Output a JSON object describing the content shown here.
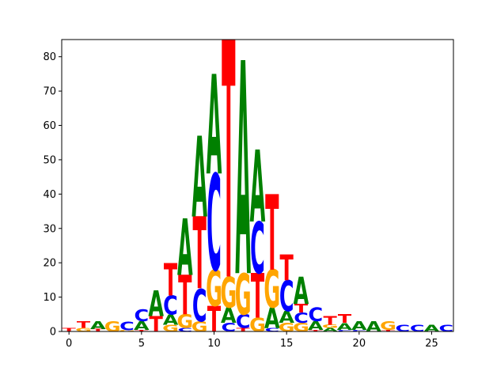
{
  "chart_data": {
    "type": "sequence-logo",
    "title": "",
    "xlabel": "",
    "ylabel": "",
    "xlim": [
      -0.5,
      26.5
    ],
    "ylim": [
      0,
      85
    ],
    "x_ticks": [
      0,
      5,
      10,
      15,
      20,
      25
    ],
    "y_ticks": [
      0,
      10,
      20,
      30,
      40,
      50,
      60,
      70,
      80
    ],
    "colors": {
      "A": "#008000",
      "C": "#0000ff",
      "G": "#ffa500",
      "T": "#ff0000"
    },
    "positions": [
      {
        "x": 0,
        "stack": [
          [
            "T",
            1
          ]
        ]
      },
      {
        "x": 1,
        "stack": [
          [
            "G",
            1
          ],
          [
            "T",
            2
          ]
        ]
      },
      {
        "x": 2,
        "stack": [
          [
            "T",
            0.7
          ],
          [
            "A",
            2.3
          ]
        ]
      },
      {
        "x": 3,
        "stack": [
          [
            "G",
            3
          ]
        ]
      },
      {
        "x": 4,
        "stack": [
          [
            "G",
            0.4
          ],
          [
            "C",
            2.6
          ]
        ]
      },
      {
        "x": 5,
        "stack": [
          [
            "T",
            0.5
          ],
          [
            "A",
            2.5
          ],
          [
            "C",
            3.5
          ]
        ]
      },
      {
        "x": 6,
        "stack": [
          [
            "T",
            4.5
          ],
          [
            "A",
            7.5
          ]
        ]
      },
      {
        "x": 7,
        "stack": [
          [
            "G",
            2
          ],
          [
            "A",
            3
          ],
          [
            "C",
            5.5
          ],
          [
            "T",
            9.5
          ]
        ]
      },
      {
        "x": 8,
        "stack": [
          [
            "C",
            1
          ],
          [
            "G",
            4
          ],
          [
            "T",
            11.5
          ],
          [
            "A",
            16.5
          ]
        ]
      },
      {
        "x": 9,
        "stack": [
          [
            "G",
            3
          ],
          [
            "C",
            9.5
          ],
          [
            "T",
            21
          ],
          [
            "A",
            23.5
          ]
        ]
      },
      {
        "x": 10,
        "stack": [
          [
            "T",
            7.5
          ],
          [
            "G",
            10.5
          ],
          [
            "C",
            28
          ],
          [
            "A",
            29
          ]
        ]
      },
      {
        "x": 11,
        "stack": [
          [
            "C",
            2.5
          ],
          [
            "A",
            4.5
          ],
          [
            "G",
            9
          ],
          [
            "T",
            69
          ]
        ]
      },
      {
        "x": 12,
        "stack": [
          [
            "T",
            1
          ],
          [
            "C",
            4
          ],
          [
            "G",
            12
          ],
          [
            "A",
            62
          ]
        ]
      },
      {
        "x": 13,
        "stack": [
          [
            "G",
            4
          ],
          [
            "T",
            13
          ],
          [
            "C",
            15
          ],
          [
            "A",
            21
          ]
        ]
      },
      {
        "x": 14,
        "stack": [
          [
            "C",
            1
          ],
          [
            "A",
            6
          ],
          [
            "G",
            11
          ],
          [
            "T",
            22
          ]
        ]
      },
      {
        "x": 15,
        "stack": [
          [
            "G",
            2.5
          ],
          [
            "A",
            3.5
          ],
          [
            "C",
            9
          ],
          [
            "T",
            7.5
          ]
        ]
      },
      {
        "x": 16,
        "stack": [
          [
            "G",
            2.5
          ],
          [
            "C",
            3
          ],
          [
            "T",
            2.5
          ],
          [
            "A",
            8
          ]
        ]
      },
      {
        "x": 17,
        "stack": [
          [
            "T",
            0.5
          ],
          [
            "A",
            2.5
          ],
          [
            "C",
            4
          ]
        ]
      },
      {
        "x": 18,
        "stack": [
          [
            "A",
            1
          ],
          [
            "G",
            1
          ],
          [
            "T",
            2.5
          ]
        ]
      },
      {
        "x": 19,
        "stack": [
          [
            "C",
            0.5
          ],
          [
            "A",
            2
          ],
          [
            "T",
            2.5
          ]
        ]
      },
      {
        "x": 20,
        "stack": [
          [
            "C",
            0.5
          ],
          [
            "A",
            2.5
          ]
        ]
      },
      {
        "x": 21,
        "stack": [
          [
            "A",
            3
          ]
        ]
      },
      {
        "x": 22,
        "stack": [
          [
            "T",
            0.5
          ],
          [
            "G",
            2.5
          ]
        ]
      },
      {
        "x": 23,
        "stack": [
          [
            "C",
            2
          ]
        ]
      },
      {
        "x": 24,
        "stack": [
          [
            "C",
            2
          ]
        ]
      },
      {
        "x": 25,
        "stack": [
          [
            "A",
            2
          ]
        ]
      },
      {
        "x": 26,
        "stack": [
          [
            "C",
            2
          ]
        ]
      }
    ]
  }
}
